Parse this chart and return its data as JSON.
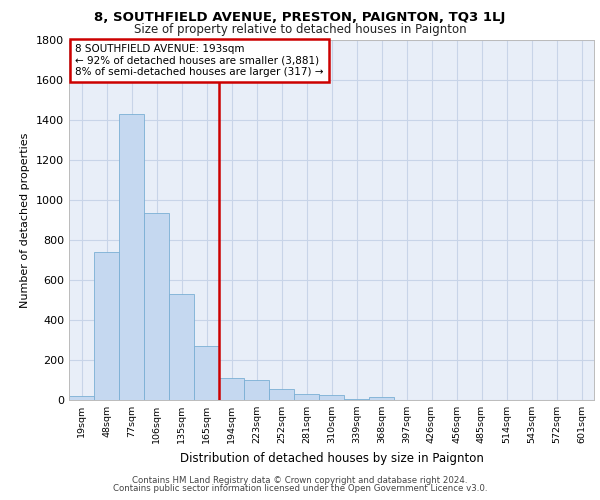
{
  "title1": "8, SOUTHFIELD AVENUE, PRESTON, PAIGNTON, TQ3 1LJ",
  "title2": "Size of property relative to detached houses in Paignton",
  "xlabel": "Distribution of detached houses by size in Paignton",
  "ylabel": "Number of detached properties",
  "bar_labels": [
    "19sqm",
    "48sqm",
    "77sqm",
    "106sqm",
    "135sqm",
    "165sqm",
    "194sqm",
    "223sqm",
    "252sqm",
    "281sqm",
    "310sqm",
    "339sqm",
    "368sqm",
    "397sqm",
    "426sqm",
    "456sqm",
    "485sqm",
    "514sqm",
    "543sqm",
    "572sqm",
    "601sqm"
  ],
  "bar_values": [
    20,
    740,
    1430,
    935,
    530,
    270,
    110,
    100,
    55,
    30,
    25,
    5,
    15,
    2,
    2,
    1,
    1,
    1,
    1,
    1,
    1
  ],
  "bar_color": "#c5d8f0",
  "bar_edge_color": "#7aafd4",
  "vline_color": "#cc0000",
  "annotation_line1": "8 SOUTHFIELD AVENUE: 193sqm",
  "annotation_line2": "← 92% of detached houses are smaller (3,881)",
  "annotation_line3": "8% of semi-detached houses are larger (317) →",
  "box_color": "#cc0000",
  "ylim": [
    0,
    1800
  ],
  "yticks": [
    0,
    200,
    400,
    600,
    800,
    1000,
    1200,
    1400,
    1600,
    1800
  ],
  "grid_color": "#c8d4e8",
  "bg_color": "#e8eef8",
  "footer1": "Contains HM Land Registry data © Crown copyright and database right 2024.",
  "footer2": "Contains public sector information licensed under the Open Government Licence v3.0."
}
